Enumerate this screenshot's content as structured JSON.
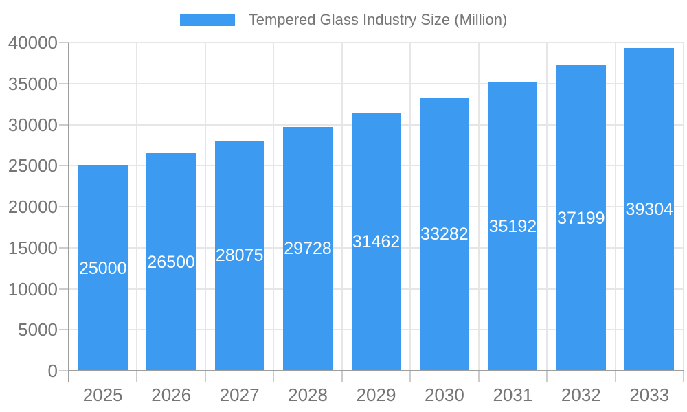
{
  "chart_data": {
    "type": "bar",
    "title": "",
    "legend": "Tempered Glass Industry Size (Million)",
    "legend_position": "top",
    "categories": [
      "2025",
      "2026",
      "2027",
      "2028",
      "2029",
      "2030",
      "2031",
      "2032",
      "2033"
    ],
    "series": [
      {
        "name": "Tempered Glass Industry Size (Million)",
        "values": [
          25000,
          26500,
          28075,
          29728,
          31462,
          33282,
          35192,
          37199,
          39304
        ]
      }
    ],
    "value_labels": [
      "25000",
      "26500",
      "28075",
      "29728",
      "31462",
      "33282",
      "35192",
      "37199",
      "39304"
    ],
    "xlabel": "",
    "ylabel": "",
    "ylim": [
      0,
      40000
    ],
    "yticks": [
      0,
      5000,
      10000,
      15000,
      20000,
      25000,
      30000,
      35000,
      40000
    ],
    "grid": true,
    "colors": {
      "bar": "#3c9bf0",
      "value_label": "#ffffff",
      "axis_text": "#757575",
      "legend_text": "#757575",
      "gridline": "#e6e6e6",
      "axis_line": "#9e9e9e",
      "tick": "#cccccc",
      "background": "#ffffff"
    }
  }
}
